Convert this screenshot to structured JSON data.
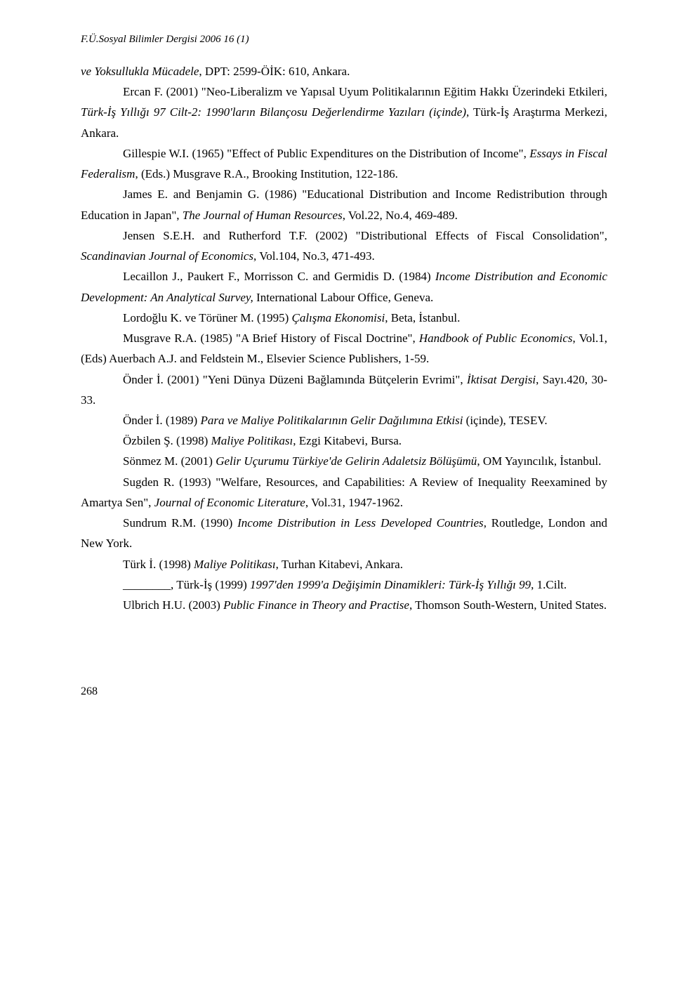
{
  "header": "F.Ü.Sosyal Bilimler Dergisi 2006 16 (1)",
  "refs": [
    {
      "pre": "ve Yoksullukla Mücadele",
      "post": ", DPT: 2599-ÖİK: 610, Ankara.",
      "indent": false
    },
    {
      "plain": "Ercan F. (2001) \"Neo-Liberalizm ve Yapısal Uyum Politikalarının Eğitim Hakkı Üzerindeki Etkileri, ",
      "italic": "Türk-İş Yıllığı 97 Cilt-2: 1990'ların Bilançosu Değerlendirme Yazıları (içinde)",
      "tail": ", Türk-İş Araştırma Merkezi, Ankara.",
      "indent": true
    },
    {
      "plain": "Gillespie W.I. (1965) \"Effect of Public Expenditures on the Distribution of Income\", ",
      "italic": "Essays in Fiscal Federalism",
      "tail": ", (Eds.) Musgrave R.A., Brooking Institution, 122-186.",
      "indent": true
    },
    {
      "plain": "James E. and Benjamin G. (1986) \"Educational Distribution and Income Redistribution through Education in Japan\", ",
      "italic": "The Journal of Human Resources",
      "tail": ", Vol.22, No.4, 469-489.",
      "indent": true
    },
    {
      "plain": "Jensen S.E.H. and Rutherford T.F. (2002) \"Distributional Effects of Fiscal Consolidation\", ",
      "italic": "Scandinavian Journal of Economics",
      "tail": ", Vol.104, No.3, 471-493.",
      "indent": true
    },
    {
      "plain": "Lecaillon J., Paukert F., Morrisson C. and Germidis D. (1984) ",
      "italic": "Income Distribution and Economic Development: An Analytical Survey,",
      "tail": " International Labour Office, Geneva.",
      "indent": true
    },
    {
      "plain": "Lordoğlu K. ve Törüner M. (1995) ",
      "italic": "Çalışma Ekonomisi",
      "tail": ", Beta, İstanbul.",
      "indent": true
    },
    {
      "plain": "Musgrave R.A. (1985) \"A Brief History of Fiscal Doctrine\", ",
      "italic": "Handbook of Public Economics",
      "tail": ", Vol.1, (Eds) Auerbach A.J. and Feldstein M., Elsevier Science Publishers, 1-59.",
      "indent": true
    },
    {
      "plain": "Önder İ. (2001) \"Yeni Dünya Düzeni Bağlamında Bütçelerin Evrimi\", ",
      "italic": "İktisat Dergisi",
      "tail": ", Sayı.420, 30-33.",
      "indent": true
    },
    {
      "plain": "Önder İ. (1989) ",
      "italic": "Para ve Maliye Politikalarının Gelir Dağılımına Etkisi",
      "tail": " (içinde), TESEV.",
      "indent": true
    },
    {
      "plain": "Özbilen Ş. (1998) ",
      "italic": "Maliye Politikası",
      "tail": ", Ezgi Kitabevi, Bursa.",
      "indent": true
    },
    {
      "plain": "Sönmez M. (2001) ",
      "italic": "Gelir Uçurumu Türkiye'de Gelirin Adaletsiz Bölüşümü",
      "tail": ", OM Yayıncılık, İstanbul.",
      "indent": true
    },
    {
      "plain": "Sugden R. (1993) \"Welfare, Resources, and Capabilities: A Review of Inequality Reexamined by Amartya Sen\", ",
      "italic": "Journal of Economic Literature",
      "tail": ", Vol.31, 1947-1962.",
      "indent": true
    },
    {
      "plain": "Sundrum R.M. (1990) ",
      "italic": "Income Distribution in Less Developed Countries",
      "tail": ", Routledge, London and New York.",
      "indent": true
    },
    {
      "plain": "Türk İ. (1998) ",
      "italic": "Maliye Politikası",
      "tail": ", Turhan Kitabevi, Ankara.",
      "indent": true
    },
    {
      "blank": "________, Türk-İş (1999) ",
      "italic": "1997'den 1999'a Değişimin Dinamikleri: Türk-İş Yıllığı 99",
      "tail": ", 1.Cilt.",
      "indent": true
    },
    {
      "plain": "Ulbrich H.U. (2003) ",
      "italic": "Public Finance in Theory and Practise",
      "tail": ", Thomson South-Western, United States.",
      "indent": true
    }
  ],
  "pageNumber": "268"
}
